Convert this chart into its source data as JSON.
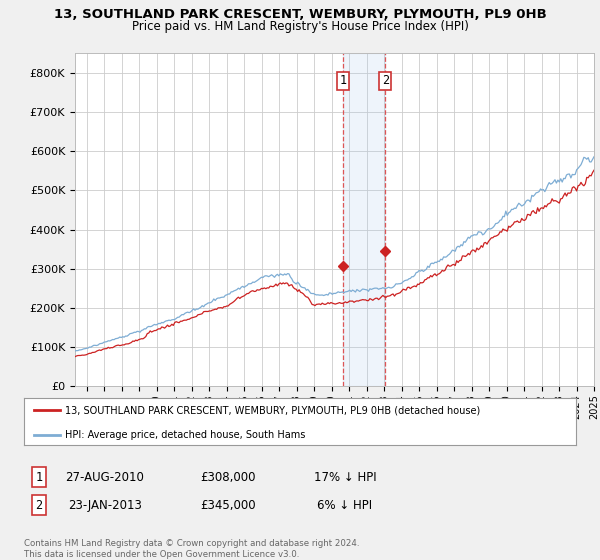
{
  "title": "13, SOUTHLAND PARK CRESCENT, WEMBURY, PLYMOUTH, PL9 0HB",
  "subtitle": "Price paid vs. HM Land Registry's House Price Index (HPI)",
  "ylabel_ticks": [
    "£0",
    "£100K",
    "£200K",
    "£300K",
    "£400K",
    "£500K",
    "£600K",
    "£700K",
    "£800K"
  ],
  "ytick_values": [
    0,
    100000,
    200000,
    300000,
    400000,
    500000,
    600000,
    700000,
    800000
  ],
  "ylim": [
    0,
    850000
  ],
  "xlim_start": 1995.33,
  "xlim_end": 2025.0,
  "hpi_color": "#7eadd4",
  "price_color": "#cc2222",
  "sale1_x": 2010.65,
  "sale1_y": 308000,
  "sale2_x": 2013.07,
  "sale2_y": 345000,
  "legend_price": "13, SOUTHLAND PARK CRESCENT, WEMBURY, PLYMOUTH, PL9 0HB (detached house)",
  "legend_hpi": "HPI: Average price, detached house, South Hams",
  "table_row1": [
    "1",
    "27-AUG-2010",
    "£308,000",
    "17% ↓ HPI"
  ],
  "table_row2": [
    "2",
    "23-JAN-2013",
    "£345,000",
    "6% ↓ HPI"
  ],
  "footer": "Contains HM Land Registry data © Crown copyright and database right 2024.\nThis data is licensed under the Open Government Licence v3.0.",
  "background_color": "#f0f0f0",
  "plot_bg": "#ffffff",
  "grid_color": "#cccccc"
}
